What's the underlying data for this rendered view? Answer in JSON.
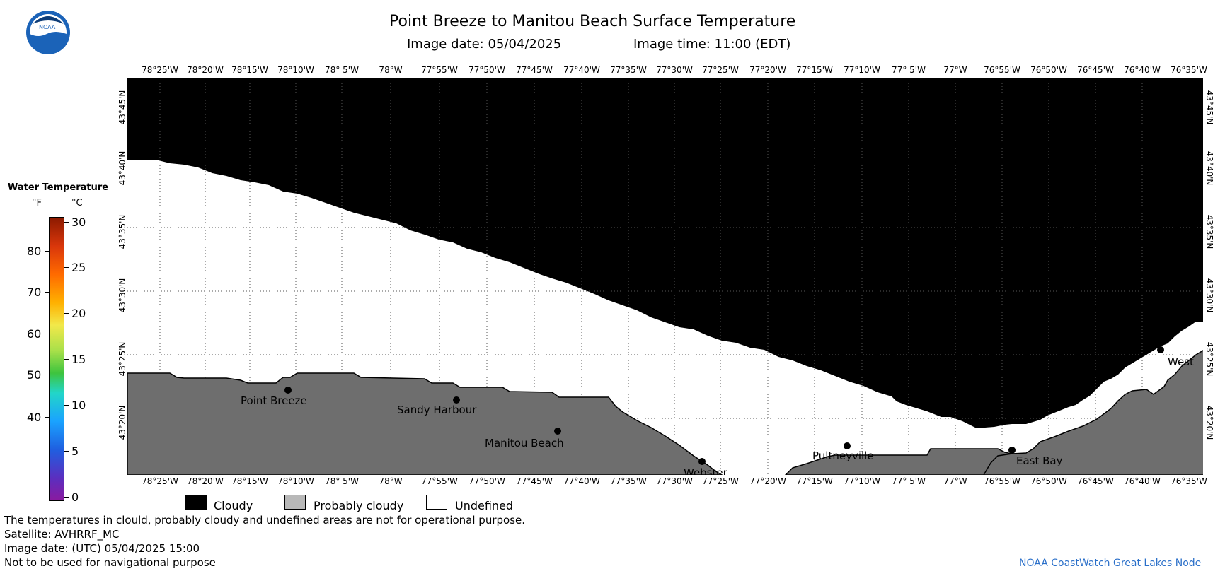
{
  "header": {
    "title": "Point Breeze to Manitou Beach Surface Temperature",
    "image_date_label": "Image date: 05/04/2025",
    "image_time_label": "Image time: 11:00 (EDT)",
    "logo_text": "NOAA"
  },
  "map": {
    "lon_labels": [
      "78°25'W",
      "78°20'W",
      "78°15'W",
      "78°10'W",
      "78° 5'W",
      "78°W",
      "77°55'W",
      "77°50'W",
      "77°45'W",
      "77°40'W",
      "77°35'W",
      "77°30'W",
      "77°25'W",
      "77°20'W",
      "77°15'W",
      "77°10'W",
      "77° 5'W",
      "77°W",
      "76°55'W",
      "76°50'W",
      "76°45'W",
      "76°40'W",
      "76°35'W"
    ],
    "lat_labels": [
      "43°45'N",
      "43°40'N",
      "43°35'N",
      "43°30'N",
      "43°25'N",
      "43°20'N"
    ],
    "places": [
      {
        "name": "Point Breeze"
      },
      {
        "name": "Sandy Harbour"
      },
      {
        "name": "Manitou Beach"
      },
      {
        "name": "Webster"
      },
      {
        "name": "Pultneyville"
      },
      {
        "name": "East Bay"
      },
      {
        "name": "West"
      }
    ],
    "colors": {
      "cloudy": "#000000",
      "probably_cloudy": "#777777",
      "undefined": "#ffffff",
      "land": "#6e6e6e"
    }
  },
  "colorbar": {
    "title": "Water Temperature",
    "unit_f": "°F",
    "unit_c": "°C",
    "f_ticks": [
      "80",
      "70",
      "60",
      "50",
      "40"
    ],
    "c_ticks": [
      "30",
      "25",
      "20",
      "15",
      "10",
      "5",
      "0"
    ]
  },
  "legend": {
    "cloudy": "Cloudy",
    "probably_cloudy": "Probably cloudy",
    "undefined": "Undefined"
  },
  "notes": {
    "disclaimer": "The temperatures in clould, probably cloudy and undefined areas are not for operational purpose.",
    "satellite": "Satellite: AVHRRF_MC",
    "utc_date": "Image date: (UTC) 05/04/2025  15:00",
    "nav": "Not to be used for navigational purpose",
    "credit": "NOAA CoastWatch Great Lakes Node"
  }
}
